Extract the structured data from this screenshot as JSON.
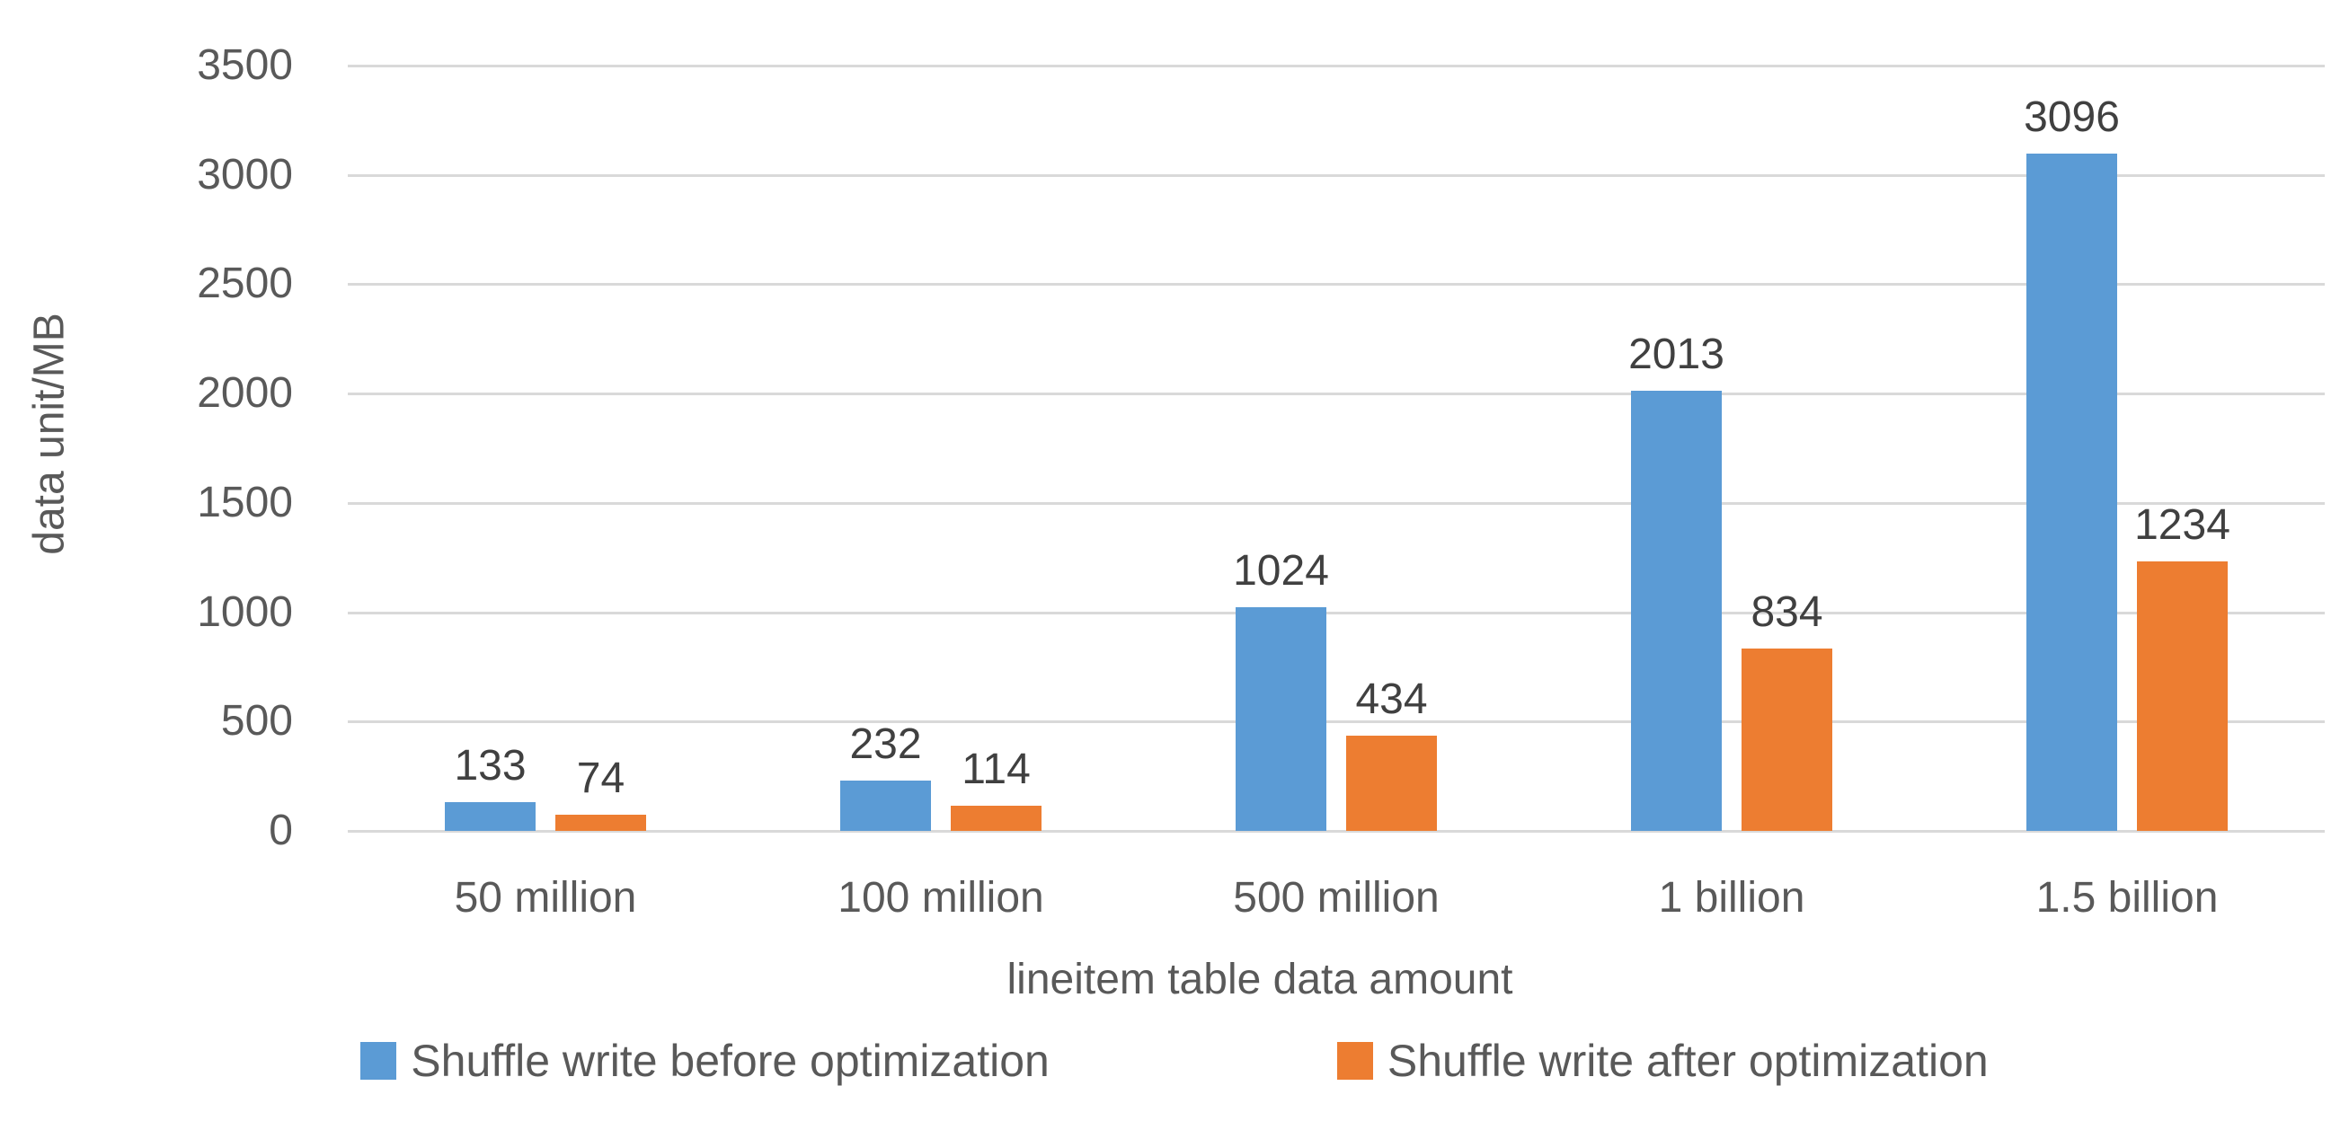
{
  "chart_data": {
    "type": "bar",
    "title": "",
    "categories": [
      "50 million",
      "100 million",
      "500 million",
      "1 billion",
      "1.5 billion"
    ],
    "series": [
      {
        "name": "Shuffle write before optimization",
        "color": "#5B9BD5",
        "values": [
          133,
          232,
          1024,
          2013,
          3096
        ]
      },
      {
        "name": "Shuffle write after optimization",
        "color": "#ED7D31",
        "values": [
          74,
          114,
          434,
          834,
          1234
        ]
      }
    ],
    "xlabel": "lineitem table data amount",
    "ylabel": "data unit/MB",
    "ylim": [
      0,
      3500
    ],
    "yticks": [
      0,
      500,
      1000,
      1500,
      2000,
      2500,
      3000,
      3500
    ],
    "grid": true,
    "data_labels": true,
    "legend_position": "bottom",
    "colors": {
      "gridline": "#d9d9d9",
      "axis_text": "#595959",
      "data_label_text": "#404040",
      "background": "#ffffff"
    }
  }
}
